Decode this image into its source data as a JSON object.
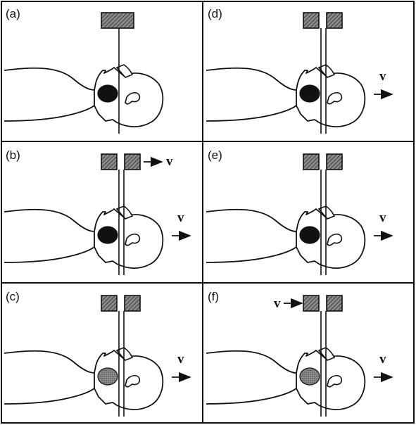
{
  "figure": {
    "colors": {
      "ink": "#111111",
      "hatch": "#555555",
      "tumor_dark": "#111111",
      "tumor_light": "#6f6f6f"
    },
    "panels": [
      {
        "label": "(a)",
        "beam": "single",
        "beam_arrow": false,
        "body_arrow": false,
        "tumor": "dark"
      },
      {
        "label": "(b)",
        "beam": "split",
        "beam_arrow": true,
        "body_arrow": true,
        "tumor": "dark"
      },
      {
        "label": "(c)",
        "beam": "split",
        "beam_arrow": false,
        "body_arrow": true,
        "tumor": "light"
      },
      {
        "label": "(d)",
        "beam": "split",
        "beam_arrow": false,
        "body_arrow": true,
        "tumor": "dark"
      },
      {
        "label": "(e)",
        "beam": "split",
        "beam_arrow": false,
        "body_arrow": true,
        "tumor": "dark"
      },
      {
        "label": "(f)",
        "beam": "split",
        "beam_arrow": "left",
        "body_arrow": true,
        "tumor": "light"
      }
    ],
    "velocity_symbol": "v"
  }
}
